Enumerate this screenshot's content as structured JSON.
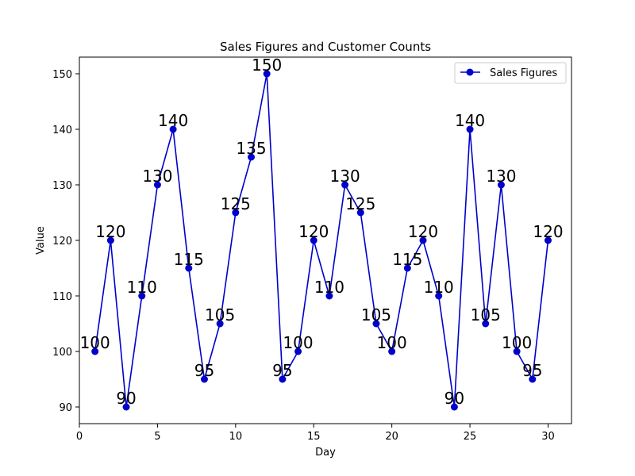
{
  "chart_data": {
    "type": "line",
    "title": "Sales Figures and Customer Counts",
    "xlabel": "Day",
    "ylabel": "Value",
    "xlim": [
      0,
      31.5
    ],
    "ylim": [
      87,
      153
    ],
    "xticks": [
      0,
      5,
      10,
      15,
      20,
      25,
      30
    ],
    "yticks": [
      90,
      100,
      110,
      120,
      130,
      140,
      150
    ],
    "grid": false,
    "legend_position": "upper-right",
    "series": [
      {
        "name": "Sales Figures",
        "color": "#0000cc",
        "marker": "circle",
        "x": [
          1,
          2,
          3,
          4,
          5,
          6,
          7,
          8,
          9,
          10,
          11,
          12,
          13,
          14,
          15,
          16,
          17,
          18,
          19,
          20,
          21,
          22,
          23,
          24,
          25,
          26,
          27,
          28,
          29,
          30
        ],
        "values": [
          100,
          120,
          90,
          110,
          130,
          140,
          115,
          95,
          105,
          125,
          135,
          150,
          95,
          100,
          120,
          110,
          130,
          125,
          105,
          100,
          115,
          120,
          110,
          90,
          140,
          105,
          130,
          100,
          95,
          120
        ]
      }
    ]
  }
}
